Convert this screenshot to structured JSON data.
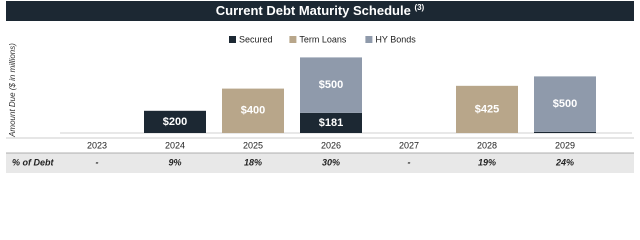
{
  "chart_data": {
    "type": "stacked_bar",
    "title": "Current Debt Maturity Schedule",
    "title_note": "(3)",
    "y_label": "Amount Due ($ in millions)",
    "categories": [
      "2023",
      "2024",
      "2025",
      "2026",
      "2027",
      "2028",
      "2029"
    ],
    "series": [
      {
        "name": "Secured",
        "color": "#1c2833",
        "values": [
          null,
          200,
          null,
          181,
          null,
          null,
          10
        ],
        "value_labels": [
          null,
          "$200",
          null,
          "$181",
          null,
          null,
          null
        ]
      },
      {
        "name": "Term Loans",
        "color": "#b8a68a",
        "values": [
          null,
          null,
          400,
          null,
          null,
          425,
          null
        ],
        "value_labels": [
          null,
          null,
          "$400",
          null,
          null,
          "$425",
          null
        ]
      },
      {
        "name": "HY Bonds",
        "color": "#8f9aab",
        "values": [
          null,
          null,
          null,
          500,
          null,
          null,
          500
        ],
        "value_labels": [
          null,
          null,
          null,
          "$500",
          null,
          null,
          "$500"
        ]
      }
    ],
    "legend": "top",
    "table": {
      "label": "% of Debt",
      "values": [
        "-",
        "9%",
        "18%",
        "30%",
        "-",
        "19%",
        "24%"
      ]
    }
  }
}
